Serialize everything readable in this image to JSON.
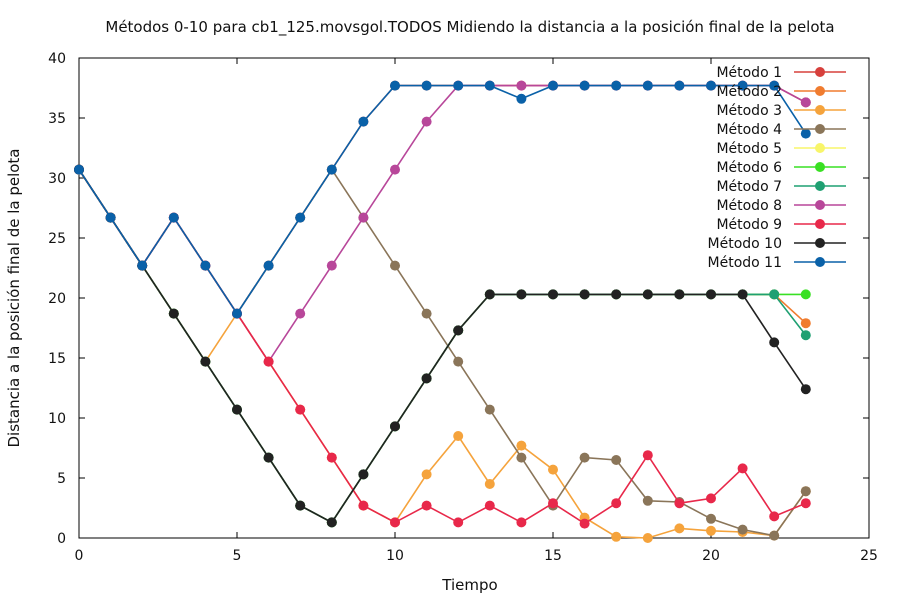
{
  "chart_data": {
    "type": "line",
    "title": "Métodos 0-10 para cb1_125.movsgol.TODOS Midiendo la distancia a la posición final de la pelota",
    "xlabel": "Tiempo",
    "ylabel": "Distancia a la posición final de la pelota",
    "xlim": [
      0,
      25
    ],
    "ylim": [
      0,
      40
    ],
    "xticks": [
      "0",
      "5",
      "10",
      "15",
      "20",
      "25"
    ],
    "yticks": [
      "0",
      "5",
      "10",
      "15",
      "20",
      "25",
      "30",
      "35",
      "40"
    ],
    "legend_position": "top-right",
    "series": [
      {
        "name": "Método 1",
        "color": "#d7403c",
        "x": [
          0,
          1,
          2,
          3,
          4,
          5,
          6,
          7,
          8,
          9,
          10,
          11,
          12,
          13,
          14,
          15,
          16,
          17,
          18,
          19,
          20,
          21,
          22,
          23
        ],
        "y": [
          30.7,
          26.7,
          22.7,
          26.7,
          22.7,
          18.7,
          22.7,
          26.7,
          30.7,
          34.7,
          37.7,
          37.7,
          37.7,
          37.7,
          37.7,
          37.7,
          37.7,
          37.7,
          37.7,
          37.7,
          37.7,
          37.7,
          37.7,
          36.3
        ]
      },
      {
        "name": "Método 2",
        "color": "#f07c2f",
        "x": [
          0,
          1,
          2,
          3,
          4,
          5,
          6,
          7,
          8,
          9,
          10,
          11,
          12,
          13,
          14,
          15,
          16,
          17,
          18,
          19,
          20,
          21,
          22,
          23
        ],
        "y": [
          30.7,
          26.7,
          22.7,
          18.7,
          14.7,
          10.7,
          6.7,
          2.7,
          1.3,
          5.3,
          9.3,
          13.3,
          17.3,
          20.3,
          20.3,
          20.3,
          20.3,
          20.3,
          20.3,
          20.3,
          20.3,
          20.3,
          20.3,
          17.9
        ]
      },
      {
        "name": "Método 3",
        "color": "#f5a33c",
        "x": [
          0,
          1,
          2,
          3,
          4,
          5,
          6,
          7,
          8,
          9,
          10,
          11,
          12,
          13,
          14,
          15,
          16,
          17,
          18,
          19,
          20,
          21,
          22,
          23
        ],
        "y": [
          30.7,
          26.7,
          22.7,
          18.7,
          14.7,
          18.7,
          14.7,
          10.7,
          6.7,
          2.7,
          1.3,
          5.3,
          8.5,
          4.5,
          7.7,
          5.7,
          1.7,
          0.1,
          0.0,
          0.8,
          0.6,
          0.5,
          0.2,
          3.9
        ]
      },
      {
        "name": "Método 4",
        "color": "#8a7559",
        "x": [
          0,
          1,
          2,
          3,
          4,
          5,
          6,
          7,
          8,
          9,
          10,
          11,
          12,
          13,
          14,
          15,
          16,
          17,
          18,
          19,
          20,
          21,
          22,
          23
        ],
        "y": [
          30.7,
          26.7,
          22.7,
          26.7,
          22.7,
          18.7,
          22.7,
          26.7,
          30.7,
          26.7,
          22.7,
          18.7,
          14.7,
          10.7,
          6.7,
          2.7,
          6.7,
          6.5,
          3.1,
          3.0,
          1.6,
          0.7,
          0.2,
          3.9
        ]
      },
      {
        "name": "Método 5",
        "color": "#f8f56a",
        "x": [],
        "y": []
      },
      {
        "name": "Método 6",
        "color": "#39e023",
        "x": [
          0,
          1,
          2,
          3,
          4,
          5,
          6,
          7,
          8,
          9,
          10,
          11,
          12,
          13,
          14,
          15,
          16,
          17,
          18,
          19,
          20,
          21,
          22,
          23
        ],
        "y": [
          30.7,
          26.7,
          22.7,
          18.7,
          14.7,
          10.7,
          6.7,
          2.7,
          1.3,
          5.3,
          9.3,
          13.3,
          17.3,
          20.3,
          20.3,
          20.3,
          20.3,
          20.3,
          20.3,
          20.3,
          20.3,
          20.3,
          20.3,
          20.3
        ]
      },
      {
        "name": "Método 7",
        "color": "#1fa072",
        "x": [
          0,
          1,
          2,
          3,
          4,
          5,
          6,
          7,
          8,
          9,
          10,
          11,
          12,
          13,
          14,
          15,
          16,
          17,
          18,
          19,
          20,
          21,
          22,
          23
        ],
        "y": [
          30.7,
          26.7,
          22.7,
          18.7,
          14.7,
          10.7,
          6.7,
          2.7,
          1.3,
          5.3,
          9.3,
          13.3,
          17.3,
          20.3,
          20.3,
          20.3,
          20.3,
          20.3,
          20.3,
          20.3,
          20.3,
          20.3,
          20.3,
          16.9
        ]
      },
      {
        "name": "Método 8",
        "color": "#b8479a",
        "x": [
          0,
          1,
          2,
          3,
          4,
          5,
          6,
          7,
          8,
          9,
          10,
          11,
          12,
          13,
          14,
          15,
          16,
          17,
          18,
          19,
          20,
          21,
          22,
          23
        ],
        "y": [
          30.7,
          26.7,
          22.7,
          26.7,
          22.7,
          18.7,
          14.7,
          18.7,
          22.7,
          26.7,
          30.7,
          34.7,
          37.7,
          37.7,
          37.7,
          37.7,
          37.7,
          37.7,
          37.7,
          37.7,
          37.7,
          37.7,
          37.7,
          36.3
        ]
      },
      {
        "name": "Método 9",
        "color": "#e8284a",
        "x": [
          0,
          1,
          2,
          3,
          4,
          5,
          6,
          7,
          8,
          9,
          10,
          11,
          12,
          13,
          14,
          15,
          16,
          17,
          18,
          19,
          20,
          21,
          22,
          23
        ],
        "y": [
          30.7,
          26.7,
          22.7,
          26.7,
          22.7,
          18.7,
          14.7,
          10.7,
          6.7,
          2.7,
          1.3,
          2.7,
          1.3,
          2.7,
          1.3,
          2.9,
          1.2,
          2.9,
          6.9,
          2.9,
          3.3,
          5.8,
          1.8,
          2.9
        ]
      },
      {
        "name": "Método 10",
        "color": "#222222",
        "x": [
          0,
          1,
          2,
          3,
          4,
          5,
          6,
          7,
          8,
          9,
          10,
          11,
          12,
          13,
          14,
          15,
          16,
          17,
          18,
          19,
          20,
          21,
          22,
          23
        ],
        "y": [
          30.7,
          26.7,
          22.7,
          18.7,
          14.7,
          10.7,
          6.7,
          2.7,
          1.3,
          5.3,
          9.3,
          13.3,
          17.3,
          20.3,
          20.3,
          20.3,
          20.3,
          20.3,
          20.3,
          20.3,
          20.3,
          20.3,
          16.3,
          12.4
        ]
      },
      {
        "name": "Método 11",
        "color": "#0a61a8",
        "x": [
          0,
          1,
          2,
          3,
          4,
          5,
          6,
          7,
          8,
          9,
          10,
          11,
          12,
          13,
          14,
          15,
          16,
          17,
          18,
          19,
          20,
          21,
          22,
          23
        ],
        "y": [
          30.7,
          26.7,
          22.7,
          26.7,
          22.7,
          18.7,
          22.7,
          26.7,
          30.7,
          34.7,
          37.7,
          37.7,
          37.7,
          37.7,
          36.6,
          37.7,
          37.7,
          37.7,
          37.7,
          37.7,
          37.7,
          37.7,
          37.7,
          33.7
        ]
      }
    ]
  }
}
